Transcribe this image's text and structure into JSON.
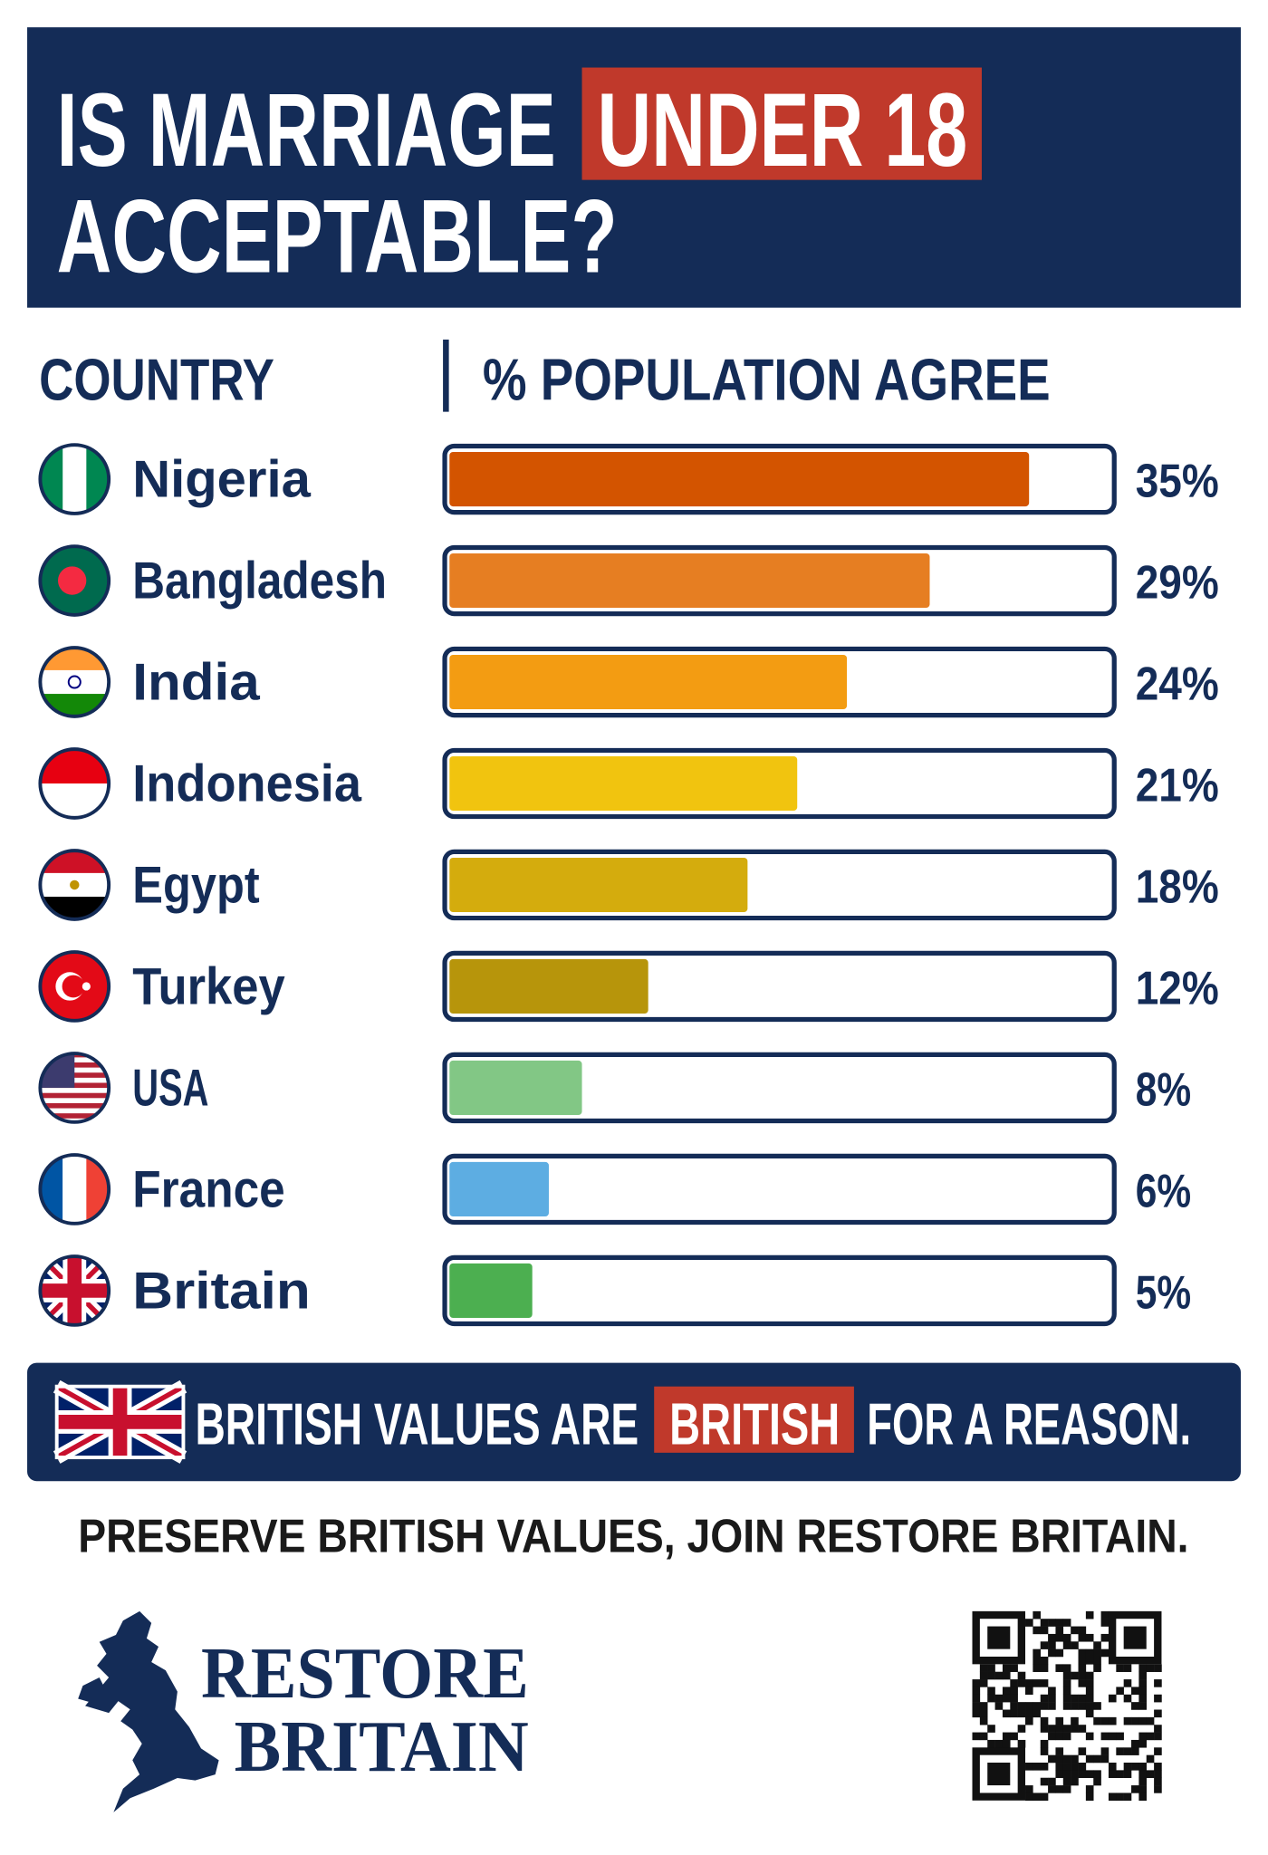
{
  "title_parts": [
    "IS MARRIAGE",
    "UNDER 18",
    "ACCEPTABLE?"
  ],
  "chart_data": {
    "type": "bar",
    "orientation": "horizontal",
    "category_header": "COUNTRY",
    "value_header": "% POPULATION AGREE",
    "categories": [
      "Nigeria",
      "Bangladesh",
      "India",
      "Indonesia",
      "Egypt",
      "Turkey",
      "USA",
      "France",
      "Britain"
    ],
    "values": [
      35,
      29,
      24,
      21,
      18,
      12,
      8,
      6,
      5
    ],
    "value_labels": [
      "35%",
      "29%",
      "24%",
      "21%",
      "18%",
      "12%",
      "8%",
      "6%",
      "5%"
    ],
    "colors": [
      "#d35400",
      "#e67e22",
      "#f39c12",
      "#f1c40f",
      "#d4ac0d",
      "#b7950b",
      "#82c785",
      "#5dade2",
      "#4caf50"
    ],
    "xlim": [
      0,
      40
    ]
  },
  "banner_parts": [
    "BRITISH VALUES ARE",
    "BRITISH",
    "FOR A REASON."
  ],
  "tagline": "PRESERVE BRITISH VALUES, JOIN RESTORE BRITAIN.",
  "logo": [
    "RESTORE",
    "BRITAIN"
  ]
}
